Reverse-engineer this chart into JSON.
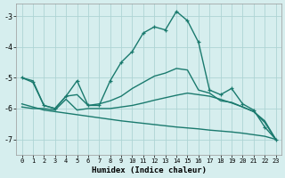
{
  "xlabel": "Humidex (Indice chaleur)",
  "background_color": "#d6eeee",
  "grid_color": "#aed4d4",
  "line_color": "#1a7a6e",
  "xlim": [
    -0.5,
    23.5
  ],
  "ylim": [
    -7.5,
    -2.6
  ],
  "yticks": [
    -7,
    -6,
    -5,
    -4,
    -3
  ],
  "xticks": [
    0,
    1,
    2,
    3,
    4,
    5,
    6,
    7,
    8,
    9,
    10,
    11,
    12,
    13,
    14,
    15,
    16,
    17,
    18,
    19,
    20,
    21,
    22,
    23
  ],
  "line_peak_y": [
    -5.0,
    -5.15,
    -5.9,
    -6.0,
    -5.6,
    -5.1,
    -5.9,
    -5.9,
    -5.1,
    -4.5,
    -4.15,
    -3.55,
    -3.35,
    -3.45,
    -2.85,
    -3.15,
    -3.85,
    -5.4,
    -5.55,
    -5.35,
    -5.85,
    -6.05,
    -6.6,
    -7.0
  ],
  "line_rise_y": [
    -5.0,
    -5.1,
    -5.9,
    -6.0,
    -5.6,
    -5.55,
    -5.9,
    -5.85,
    -5.75,
    -5.6,
    -5.35,
    -5.15,
    -4.95,
    -4.85,
    -4.7,
    -4.75,
    -5.4,
    -5.5,
    -5.75,
    -5.8,
    -5.95,
    -6.1,
    -6.45,
    -7.0
  ],
  "line_flat_y": [
    -5.95,
    -6.0,
    -6.0,
    -6.05,
    -5.7,
    -6.05,
    -6.0,
    -6.0,
    -6.0,
    -5.95,
    -5.9,
    -5.82,
    -5.73,
    -5.65,
    -5.57,
    -5.5,
    -5.55,
    -5.6,
    -5.7,
    -5.82,
    -5.95,
    -6.1,
    -6.4,
    -7.0
  ],
  "line_diag_y": [
    -5.85,
    -5.95,
    -6.05,
    -6.1,
    -6.15,
    -6.2,
    -6.25,
    -6.3,
    -6.35,
    -6.4,
    -6.44,
    -6.48,
    -6.52,
    -6.56,
    -6.6,
    -6.63,
    -6.66,
    -6.7,
    -6.73,
    -6.76,
    -6.8,
    -6.85,
    -6.9,
    -7.0
  ]
}
